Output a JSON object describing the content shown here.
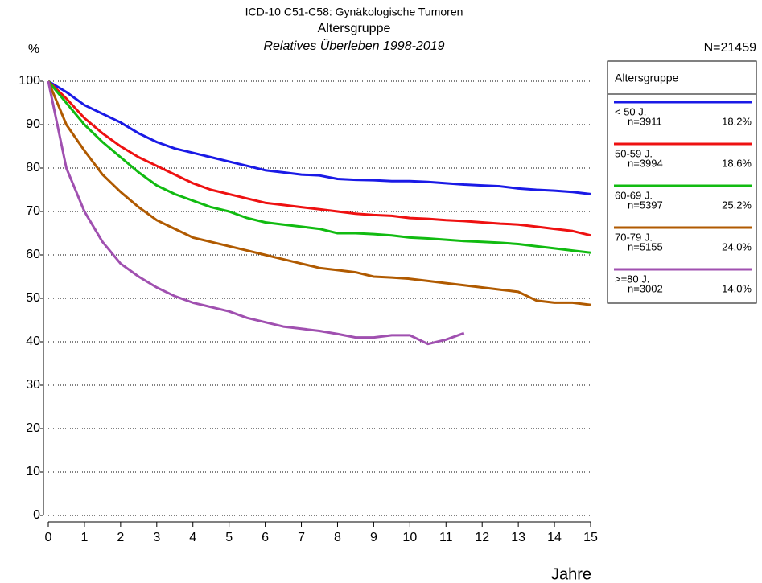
{
  "chart_data": {
    "type": "line",
    "title": "ICD-10 C51-C58: Gynäkologische Tumoren",
    "subtitle": "Altersgruppe",
    "subtitle2": "Relatives Überleben 1998-2019",
    "ylabel": "%",
    "xlabel": "Jahre",
    "total": "N=21459",
    "legend_title": "Altersgruppe",
    "x": [
      0,
      0.5,
      1,
      1.5,
      2,
      2.5,
      3,
      3.5,
      4,
      4.5,
      5,
      5.5,
      6,
      6.5,
      7,
      7.5,
      8,
      8.5,
      9,
      9.5,
      10,
      10.5,
      11,
      11.5,
      12,
      12.5,
      13,
      13.5,
      14,
      14.5,
      15
    ],
    "series": [
      {
        "name": "< 50 J.",
        "n_label": "n=3911",
        "share_label": "18.2%",
        "color": "#1a1ae6",
        "values": [
          100,
          97.5,
          94.5,
          92.5,
          90.5,
          88,
          86,
          84.5,
          83.5,
          82.5,
          81.5,
          80.5,
          79.5,
          79,
          78.5,
          78.3,
          77.5,
          77.3,
          77.2,
          77,
          77,
          76.8,
          76.5,
          76.2,
          76,
          75.8,
          75.3,
          75,
          74.8,
          74.5,
          74
        ]
      },
      {
        "name": "50-59 J.",
        "n_label": "n=3994",
        "share_label": "18.6%",
        "color": "#ee1111",
        "values": [
          100,
          96,
          91.5,
          88,
          85,
          82.5,
          80.5,
          78.5,
          76.5,
          75,
          74,
          73,
          72,
          71.5,
          71,
          70.5,
          70,
          69.5,
          69.2,
          69,
          68.5,
          68.3,
          68,
          67.8,
          67.5,
          67.2,
          67,
          66.5,
          66,
          65.5,
          64.5
        ]
      },
      {
        "name": "60-69 J.",
        "n_label": "n=5397",
        "share_label": "25.2%",
        "color": "#11bb11",
        "values": [
          100,
          95,
          90,
          86,
          82.5,
          79,
          76,
          74,
          72.5,
          71,
          70,
          68.5,
          67.5,
          67,
          66.5,
          66,
          65,
          65,
          64.8,
          64.5,
          64,
          63.8,
          63.5,
          63.2,
          63,
          62.8,
          62.5,
          62,
          61.5,
          61,
          60.5
        ]
      },
      {
        "name": "70-79 J.",
        "n_label": "n=5155",
        "share_label": "24.0%",
        "color": "#b05a00",
        "values": [
          100,
          90,
          84,
          78.5,
          74.5,
          71,
          68,
          66,
          64,
          63,
          62,
          61,
          60,
          59,
          58,
          57,
          56.5,
          56,
          55,
          54.8,
          54.5,
          54,
          53.5,
          53,
          52.5,
          52,
          51.5,
          49.5,
          49,
          49,
          48.5
        ]
      },
      {
        "name": ">=80 J.",
        "n_label": "n=3002",
        "share_label": "14.0%",
        "color": "#a050b0",
        "values": [
          100,
          80,
          70,
          63,
          58,
          55,
          52.5,
          50.5,
          49,
          48,
          47,
          45.5,
          44.5,
          43.5,
          43,
          42.5,
          41.8,
          41,
          41,
          41.5,
          41.5,
          39.5,
          40.5,
          42,
          null,
          null,
          null,
          null,
          null,
          null,
          null
        ]
      }
    ],
    "xlim": [
      0,
      15
    ],
    "xticks": [
      0,
      1,
      2,
      3,
      4,
      5,
      6,
      7,
      8,
      9,
      10,
      11,
      12,
      13,
      14,
      15
    ],
    "ylim": [
      0,
      100
    ],
    "yticks": [
      0,
      10,
      20,
      30,
      40,
      50,
      60,
      70,
      80,
      90,
      100
    ],
    "grid": true
  }
}
